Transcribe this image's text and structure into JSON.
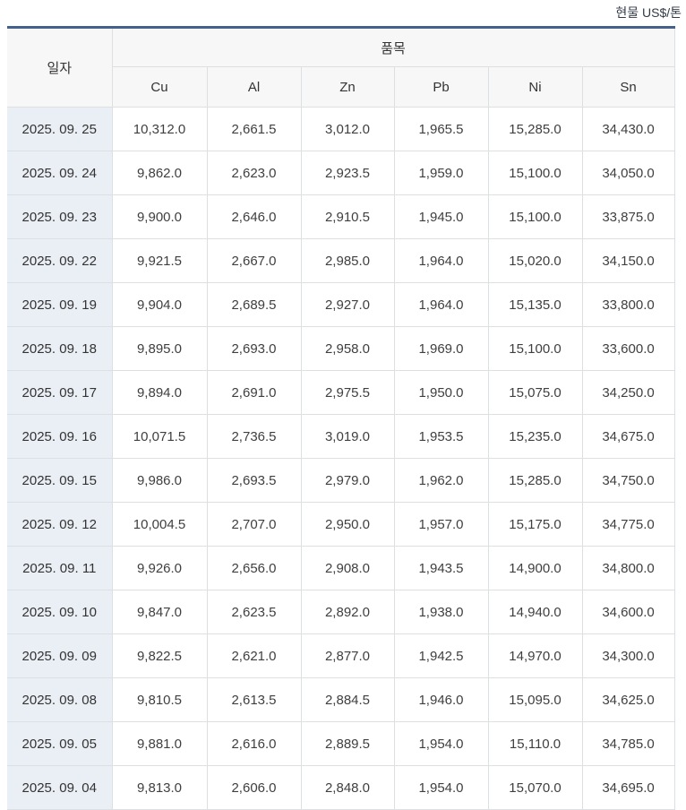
{
  "title": "현물 US$/톤",
  "table": {
    "date_header": "일자",
    "group_header": "품목",
    "metal_columns": [
      "Cu",
      "Al",
      "Zn",
      "Pb",
      "Ni",
      "Sn"
    ],
    "rows": [
      {
        "date": "2025. 09. 25",
        "values": [
          "10,312.0",
          "2,661.5",
          "3,012.0",
          "1,965.5",
          "15,285.0",
          "34,430.0"
        ]
      },
      {
        "date": "2025. 09. 24",
        "values": [
          "9,862.0",
          "2,623.0",
          "2,923.5",
          "1,959.0",
          "15,100.0",
          "34,050.0"
        ]
      },
      {
        "date": "2025. 09. 23",
        "values": [
          "9,900.0",
          "2,646.0",
          "2,910.5",
          "1,945.0",
          "15,100.0",
          "33,875.0"
        ]
      },
      {
        "date": "2025. 09. 22",
        "values": [
          "9,921.5",
          "2,667.0",
          "2,985.0",
          "1,964.0",
          "15,020.0",
          "34,150.0"
        ]
      },
      {
        "date": "2025. 09. 19",
        "values": [
          "9,904.0",
          "2,689.5",
          "2,927.0",
          "1,964.0",
          "15,135.0",
          "33,800.0"
        ]
      },
      {
        "date": "2025. 09. 18",
        "values": [
          "9,895.0",
          "2,693.0",
          "2,958.0",
          "1,969.0",
          "15,100.0",
          "33,600.0"
        ]
      },
      {
        "date": "2025. 09. 17",
        "values": [
          "9,894.0",
          "2,691.0",
          "2,975.5",
          "1,950.0",
          "15,075.0",
          "34,250.0"
        ]
      },
      {
        "date": "2025. 09. 16",
        "values": [
          "10,071.5",
          "2,736.5",
          "3,019.0",
          "1,953.5",
          "15,235.0",
          "34,675.0"
        ]
      },
      {
        "date": "2025. 09. 15",
        "values": [
          "9,986.0",
          "2,693.5",
          "2,979.0",
          "1,962.0",
          "15,285.0",
          "34,750.0"
        ]
      },
      {
        "date": "2025. 09. 12",
        "values": [
          "10,004.5",
          "2,707.0",
          "2,950.0",
          "1,957.0",
          "15,175.0",
          "34,775.0"
        ]
      },
      {
        "date": "2025. 09. 11",
        "values": [
          "9,926.0",
          "2,656.0",
          "2,908.0",
          "1,943.5",
          "14,900.0",
          "34,800.0"
        ]
      },
      {
        "date": "2025. 09. 10",
        "values": [
          "9,847.0",
          "2,623.5",
          "2,892.0",
          "1,938.0",
          "14,940.0",
          "34,600.0"
        ]
      },
      {
        "date": "2025. 09. 09",
        "values": [
          "9,822.5",
          "2,621.0",
          "2,877.0",
          "1,942.5",
          "14,970.0",
          "34,300.0"
        ]
      },
      {
        "date": "2025. 09. 08",
        "values": [
          "9,810.5",
          "2,613.5",
          "2,884.5",
          "1,946.0",
          "15,095.0",
          "34,625.0"
        ]
      },
      {
        "date": "2025. 09. 05",
        "values": [
          "9,881.0",
          "2,616.0",
          "2,889.5",
          "1,954.0",
          "15,110.0",
          "34,785.0"
        ]
      },
      {
        "date": "2025. 09. 04",
        "values": [
          "9,813.0",
          "2,606.0",
          "2,848.0",
          "1,954.0",
          "15,070.0",
          "34,695.0"
        ]
      }
    ]
  },
  "colors": {
    "accent_top_rule": "#44618c",
    "header_bg": "#f7f7f8",
    "date_column_bg": "#eaeff5",
    "grid_border": "#dde0e3"
  },
  "chart_data": {
    "type": "table",
    "title": "현물 US$/톤",
    "columns": [
      "일자",
      "Cu",
      "Al",
      "Zn",
      "Pb",
      "Ni",
      "Sn"
    ],
    "rows": [
      [
        "2025. 09. 25",
        10312.0,
        2661.5,
        3012.0,
        1965.5,
        15285.0,
        34430.0
      ],
      [
        "2025. 09. 24",
        9862.0,
        2623.0,
        2923.5,
        1959.0,
        15100.0,
        34050.0
      ],
      [
        "2025. 09. 23",
        9900.0,
        2646.0,
        2910.5,
        1945.0,
        15100.0,
        33875.0
      ],
      [
        "2025. 09. 22",
        9921.5,
        2667.0,
        2985.0,
        1964.0,
        15020.0,
        34150.0
      ],
      [
        "2025. 09. 19",
        9904.0,
        2689.5,
        2927.0,
        1964.0,
        15135.0,
        33800.0
      ],
      [
        "2025. 09. 18",
        9895.0,
        2693.0,
        2958.0,
        1969.0,
        15100.0,
        33600.0
      ],
      [
        "2025. 09. 17",
        9894.0,
        2691.0,
        2975.5,
        1950.0,
        15075.0,
        34250.0
      ],
      [
        "2025. 09. 16",
        10071.5,
        2736.5,
        3019.0,
        1953.5,
        15235.0,
        34675.0
      ],
      [
        "2025. 09. 15",
        9986.0,
        2693.5,
        2979.0,
        1962.0,
        15285.0,
        34750.0
      ],
      [
        "2025. 09. 12",
        10004.5,
        2707.0,
        2950.0,
        1957.0,
        15175.0,
        34775.0
      ],
      [
        "2025. 09. 11",
        9926.0,
        2656.0,
        2908.0,
        1943.5,
        14900.0,
        34800.0
      ],
      [
        "2025. 09. 10",
        9847.0,
        2623.5,
        2892.0,
        1938.0,
        14940.0,
        34600.0
      ],
      [
        "2025. 09. 09",
        9822.5,
        2621.0,
        2877.0,
        1942.5,
        14970.0,
        34300.0
      ],
      [
        "2025. 09. 08",
        9810.5,
        2613.5,
        2884.5,
        1946.0,
        15095.0,
        34625.0
      ],
      [
        "2025. 09. 05",
        9881.0,
        2616.0,
        2889.5,
        1954.0,
        15110.0,
        34785.0
      ],
      [
        "2025. 09. 04",
        9813.0,
        2606.0,
        2848.0,
        1954.0,
        15070.0,
        34695.0
      ]
    ]
  }
}
